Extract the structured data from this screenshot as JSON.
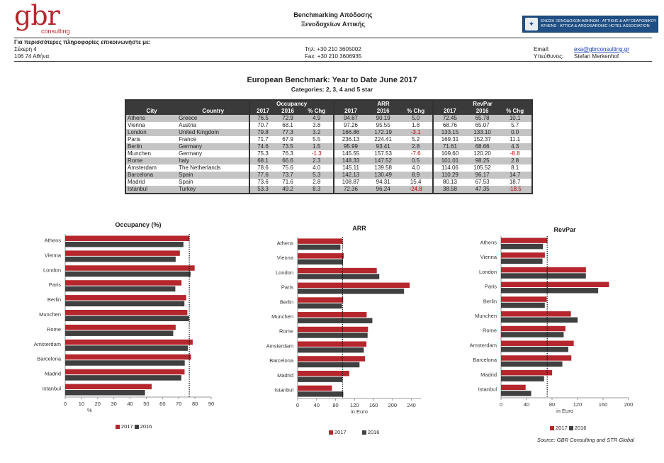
{
  "header": {
    "logo_text": "gbr",
    "logo_sub": "consulting",
    "title_line1": "Benchmarking Απόδοσης",
    "title_line2": "Ξενοδοχείων Αττικής",
    "assoc_line1": "ΕΝΩΣΗ ΞΕΝΟΔΟΧΩΝ ΑΘΗΝΩΝ · ΑΤΤΙΚΗΣ & ΑΡΓΟΣΑΡΩΝΙΚΟΥ",
    "assoc_line2": "ATHENS · ATTICA & ARGOSARONIC HOTEL ASSOCIATION"
  },
  "contact": {
    "heading": "Για περισσότερες πληροφορίες επικοινωνήστε με:",
    "street": "Σέκερη 4",
    "city": "106 74 Αθήνα",
    "phone": "Τηλ: +30 210 3605002",
    "fax": "Fax: +30 210 3606935",
    "email_label": "Email:",
    "email": "exa@gbrconsulting.gr",
    "contact_label": "Υπεύθυνος:",
    "contact_name": "Stefan Merkenhof"
  },
  "benchmark": {
    "title": "European Benchmark: Year to Date June 2017",
    "subtitle": "Categories: 2, 3, 4 and 5 star",
    "group_occupancy": "Occupancy",
    "group_arr": "ARR",
    "group_revpar": "RevPar",
    "col_city": "City",
    "col_country": "Country",
    "col_2017": "2017",
    "col_2016": "2016",
    "col_chg": "% Chg",
    "rows": [
      {
        "city": "Athens",
        "country": "Greece",
        "occ17": "76.5",
        "occ16": "72.9",
        "occchg": "4.9",
        "arr17": "94.67",
        "arr16": "90.19",
        "arrchg": "5.0",
        "rev17": "72.45",
        "rev16": "65.78",
        "revchg": "10.1"
      },
      {
        "city": "Vienna",
        "country": "Austria",
        "occ17": "70.7",
        "occ16": "68.1",
        "occchg": "3.8",
        "arr17": "97.26",
        "arr16": "95.55",
        "arrchg": "1.8",
        "rev17": "68.76",
        "rev16": "65.07",
        "revchg": "5.7"
      },
      {
        "city": "London",
        "country": "United Kingdom",
        "occ17": "79.8",
        "occ16": "77.3",
        "occchg": "3.2",
        "arr17": "166.86",
        "arr16": "172.19",
        "arrchg": "-3.1",
        "rev17": "133.15",
        "rev16": "133.10",
        "revchg": "0.0"
      },
      {
        "city": "Paris",
        "country": "France",
        "occ17": "71.7",
        "occ16": "67.9",
        "occchg": "5.5",
        "arr17": "236.13",
        "arr16": "224.41",
        "arrchg": "5.2",
        "rev17": "169.31",
        "rev16": "152.37",
        "revchg": "11.1"
      },
      {
        "city": "Berlin",
        "country": "Germany",
        "occ17": "74.6",
        "occ16": "73.5",
        "occchg": "1.5",
        "arr17": "95.99",
        "arr16": "93.41",
        "arrchg": "2.8",
        "rev17": "71.61",
        "rev16": "68.66",
        "revchg": "4.3"
      },
      {
        "city": "Munchen",
        "country": "Germany",
        "occ17": "75.3",
        "occ16": "76.3",
        "occchg": "-1.3",
        "arr17": "145.55",
        "arr16": "157.53",
        "arrchg": "-7.6",
        "rev17": "109.60",
        "rev16": "120.20",
        "revchg": "-8.8"
      },
      {
        "city": "Rome",
        "country": "Italy",
        "occ17": "68.1",
        "occ16": "66.6",
        "occchg": "2.3",
        "arr17": "148.33",
        "arr16": "147.52",
        "arrchg": "0.5",
        "rev17": "101.01",
        "rev16": "98.25",
        "revchg": "2.8"
      },
      {
        "city": "Amsterdam",
        "country": "The Netherlands",
        "occ17": "78.6",
        "occ16": "75.6",
        "occchg": "4.0",
        "arr17": "145.11",
        "arr16": "139.58",
        "arrchg": "4.0",
        "rev17": "114.06",
        "rev16": "105.52",
        "revchg": "8.1"
      },
      {
        "city": "Barcelona",
        "country": "Spain",
        "occ17": "77.6",
        "occ16": "73.7",
        "occchg": "5.3",
        "arr17": "142.13",
        "arr16": "130.49",
        "arrchg": "8.9",
        "rev17": "110.29",
        "rev16": "96.17",
        "revchg": "14.7"
      },
      {
        "city": "Madrid",
        "country": "Spain",
        "occ17": "73.6",
        "occ16": "71.6",
        "occchg": "2.8",
        "arr17": "108.87",
        "arr16": "94.31",
        "arrchg": "15.4",
        "rev17": "80.13",
        "rev16": "67.53",
        "revchg": "18.7"
      },
      {
        "city": "Istanbul",
        "country": "Turkey",
        "occ17": "53.3",
        "occ16": "49.2",
        "occchg": "8.3",
        "arr17": "72.36",
        "arr16": "96.24",
        "arrchg": "-24.8",
        "rev17": "38.58",
        "rev16": "47.35",
        "revchg": "-18.5"
      }
    ]
  },
  "chart_data": [
    {
      "type": "bar",
      "orientation": "horizontal",
      "title": "Occupancy (%)",
      "xlabel": "%",
      "categories": [
        "Athens",
        "Vienna",
        "London",
        "Paris",
        "Berlin",
        "Munchen",
        "Rome",
        "Amsterdam",
        "Barcelona",
        "Madrid",
        "Istanbul"
      ],
      "series": [
        {
          "name": "2017",
          "values": [
            76.5,
            70.7,
            79.8,
            71.7,
            74.6,
            75.3,
            68.1,
            78.6,
            77.6,
            73.6,
            53.3
          ]
        },
        {
          "name": "2016",
          "values": [
            72.9,
            68.1,
            77.3,
            67.9,
            73.5,
            76.3,
            66.6,
            75.6,
            73.7,
            71.6,
            49.2
          ]
        }
      ],
      "xlim": [
        0,
        90
      ],
      "ticks": [
        "0",
        "10",
        "20",
        "30",
        "40",
        "50",
        "60",
        "70",
        "80",
        "90"
      ],
      "reference_line": 76.5
    },
    {
      "type": "bar",
      "orientation": "horizontal",
      "title": "ARR",
      "xlabel": "in Euro",
      "categories": [
        "Athens",
        "Vienna",
        "London",
        "Paris",
        "Berlin",
        "Munchen",
        "Rome",
        "Amsterdam",
        "Barcelona",
        "Madrid",
        "Istanbul"
      ],
      "series": [
        {
          "name": "2017",
          "values": [
            94.67,
            97.26,
            166.86,
            236.13,
            95.99,
            145.55,
            148.33,
            145.11,
            142.13,
            108.87,
            72.36
          ]
        },
        {
          "name": "2016",
          "values": [
            90.19,
            95.55,
            172.19,
            224.41,
            93.41,
            157.53,
            147.52,
            139.58,
            130.49,
            94.31,
            96.24
          ]
        }
      ],
      "xlim": [
        0,
        260
      ],
      "ticks": [
        "0",
        "40",
        "80",
        "120",
        "160",
        "200",
        "240"
      ],
      "reference_line": 94.67
    },
    {
      "type": "bar",
      "orientation": "horizontal",
      "title": "RevPar",
      "xlabel": "in Euro",
      "categories": [
        "Athens",
        "Vienna",
        "London",
        "Paris",
        "Berlin",
        "Munchen",
        "Rome",
        "Amsterdam",
        "Barcelona",
        "Madrid",
        "Istanbul"
      ],
      "series": [
        {
          "name": "2017",
          "values": [
            72.45,
            68.76,
            133.15,
            169.31,
            71.61,
            109.6,
            101.01,
            114.06,
            110.29,
            80.13,
            38.58
          ]
        },
        {
          "name": "2016",
          "values": [
            65.78,
            65.07,
            133.1,
            152.37,
            68.66,
            120.2,
            98.25,
            105.52,
            96.17,
            67.53,
            47.35
          ]
        }
      ],
      "xlim": [
        0,
        200
      ],
      "ticks": [
        "0",
        "40",
        "80",
        "120",
        "160",
        "200"
      ],
      "reference_line": 72.45
    }
  ],
  "legend": {
    "label_2017": "2017",
    "label_2016": "2016"
  },
  "colors": {
    "series_2017": "#b5272d",
    "series_2016": "#404040",
    "header_dark": "#3a3a3a",
    "row_shade": "#c4c4c4",
    "negative": "#c00000"
  },
  "source": "Source: GBR Consulting and STR Global"
}
